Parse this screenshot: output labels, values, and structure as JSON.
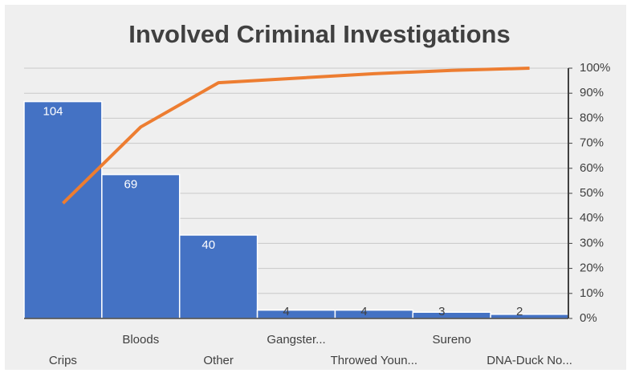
{
  "chart_data": {
    "type": "pareto",
    "title": "Involved Criminal Investigations",
    "categories": [
      "Crips",
      "Bloods",
      "Other",
      "Gangster...",
      "Throwed Youn...",
      "Sureno",
      "DNA-Duck No..."
    ],
    "series": [
      {
        "name": "Count",
        "color": "#4472c4",
        "values": [
          104,
          69,
          40,
          4,
          4,
          3,
          2
        ]
      },
      {
        "name": "Cumulative",
        "color": "#ed7d31",
        "axis": "y2",
        "values": [
          46,
          76.5,
          94.2,
          96,
          97.8,
          99.1,
          100
        ]
      }
    ],
    "ylim": [
      0,
      120
    ],
    "y2lim": [
      0,
      100
    ],
    "y2ticks": [
      {
        "value": 0,
        "label": "0%"
      },
      {
        "value": 10,
        "label": "10%"
      },
      {
        "value": 20,
        "label": "20%"
      },
      {
        "value": 30,
        "label": "30%"
      },
      {
        "value": 40,
        "label": "40%"
      },
      {
        "value": 50,
        "label": "50%"
      },
      {
        "value": 60,
        "label": "60%"
      },
      {
        "value": 70,
        "label": "70%"
      },
      {
        "value": 80,
        "label": "80%"
      },
      {
        "value": 90,
        "label": "90%"
      },
      {
        "value": 100,
        "label": "100%"
      }
    ],
    "grid": true
  }
}
